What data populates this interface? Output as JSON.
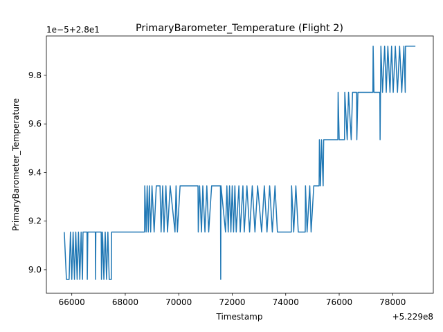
{
  "chart_data": {
    "type": "line",
    "title": "PrimaryBarometer_Temperature (Flight 2)",
    "x_label": "Timestamp",
    "y_label": "PrimaryBarometer_Temperature",
    "x_offset_label": "+5.229e8",
    "y_offset_label": "1e−5+2.8e1",
    "xlim": [
      65050,
      79520
    ],
    "ylim": [
      8.903,
      9.962
    ],
    "xticks": [
      66000,
      68000,
      70000,
      72000,
      74000,
      76000,
      78000
    ],
    "yticks": [
      {
        "value": 9,
        "label": "9.0"
      },
      9.2,
      9.4,
      9.6,
      9.8
    ],
    "grid": false,
    "series": [
      {
        "color": "#1f77b4",
        "x": [
          65720,
          65800,
          65900,
          65950,
          66000,
          66050,
          66100,
          66150,
          66200,
          66250,
          66300,
          66350,
          66400,
          66420,
          66570,
          66580,
          66600,
          66880,
          66890,
          66900,
          67100,
          67110,
          67150,
          67200,
          67250,
          67300,
          67350,
          67400,
          67480,
          67490,
          68720,
          68730,
          68780,
          68820,
          68860,
          68900,
          68950,
          69000,
          69080,
          69160,
          69300,
          69340,
          69400,
          69450,
          69520,
          69580,
          69680,
          69860,
          69900,
          69950,
          70050,
          70720,
          70730,
          70780,
          70850,
          70900,
          70980,
          71050,
          71120,
          71230,
          71560,
          71570,
          71580,
          71750,
          71800,
          71850,
          71900,
          71950,
          72000,
          72050,
          72100,
          72150,
          72250,
          72300,
          72400,
          72450,
          72550,
          72650,
          72750,
          72850,
          72950,
          73100,
          73200,
          73300,
          73400,
          73500,
          73600,
          73690,
          74210,
          74220,
          74300,
          74380,
          74470,
          74730,
          74740,
          74800,
          74900,
          74950,
          75050,
          75250,
          75260,
          75300,
          75340,
          75400,
          75420,
          75950,
          75960,
          76000,
          76200,
          76210,
          76300,
          76350,
          76450,
          76500,
          76650,
          76660,
          76700,
          77260,
          77270,
          77300,
          77520,
          77530,
          77560,
          77620,
          77700,
          77760,
          77820,
          77900,
          77960,
          78020,
          78100,
          78180,
          78260,
          78340,
          78420,
          78470,
          78480,
          78850
        ],
        "values": [
          9.155,
          8.96,
          8.96,
          9.155,
          8.96,
          9.155,
          8.96,
          9.155,
          8.96,
          9.155,
          8.96,
          9.155,
          8.96,
          9.155,
          9.155,
          8.96,
          9.155,
          9.155,
          8.96,
          9.155,
          9.155,
          8.96,
          9.155,
          8.96,
          9.155,
          8.96,
          9.155,
          8.96,
          8.96,
          9.155,
          9.155,
          9.345,
          9.155,
          9.345,
          9.155,
          9.345,
          9.155,
          9.345,
          9.155,
          9.345,
          9.345,
          9.155,
          9.345,
          9.155,
          9.345,
          9.155,
          9.345,
          9.155,
          9.345,
          9.155,
          9.345,
          9.345,
          9.155,
          9.345,
          9.155,
          9.345,
          9.155,
          9.345,
          9.155,
          9.345,
          9.345,
          8.96,
          9.345,
          9.155,
          9.345,
          9.155,
          9.345,
          9.155,
          9.345,
          9.155,
          9.345,
          9.155,
          9.345,
          9.155,
          9.345,
          9.155,
          9.345,
          9.155,
          9.345,
          9.155,
          9.345,
          9.155,
          9.345,
          9.155,
          9.345,
          9.155,
          9.345,
          9.155,
          9.155,
          9.345,
          9.155,
          9.345,
          9.155,
          9.155,
          9.345,
          9.155,
          9.345,
          9.155,
          9.345,
          9.345,
          9.535,
          9.345,
          9.535,
          9.345,
          9.535,
          9.535,
          9.73,
          9.535,
          9.535,
          9.73,
          9.535,
          9.73,
          9.535,
          9.73,
          9.73,
          9.535,
          9.73,
          9.73,
          9.92,
          9.73,
          9.73,
          9.535,
          9.92,
          9.73,
          9.92,
          9.73,
          9.92,
          9.73,
          9.92,
          9.73,
          9.92,
          9.73,
          9.92,
          9.73,
          9.92,
          9.73,
          9.92,
          9.92
        ]
      }
    ]
  }
}
